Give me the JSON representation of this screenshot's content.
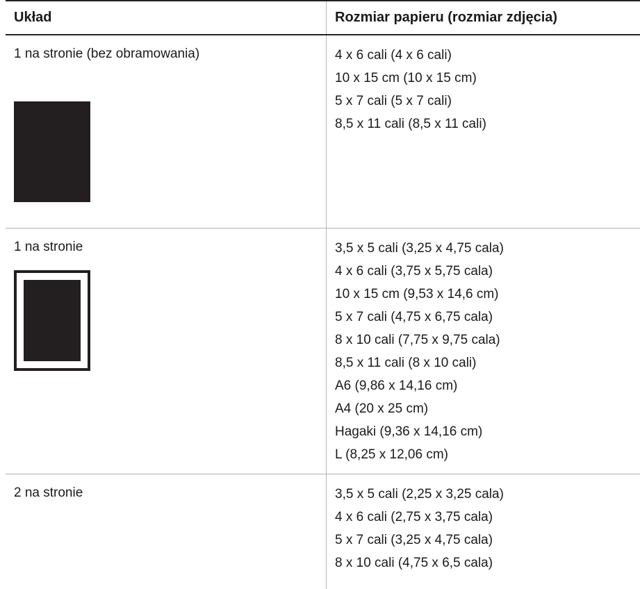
{
  "table": {
    "headers": {
      "layout": "Układ",
      "paper_size": "Rozmiar papieru (rozmiar zdjęcia)"
    },
    "rows": [
      {
        "layout": "1 na stronie (bez obramowania)",
        "thumbnail": "borderless-photo-icon",
        "sizes": [
          "4 x 6 cali (4 x 6 cali)",
          "10 x 15 cm (10 x 15 cm)",
          "5 x 7 cali (5 x 7 cali)",
          "8,5 x 11 cali (8,5 x 11 cali)"
        ]
      },
      {
        "layout": "1 na stronie",
        "thumbnail": "bordered-photo-icon",
        "sizes": [
          "3,5 x 5 cali (3,25 x 4,75 cala)",
          "4 x 6 cali (3,75 x 5,75 cala)",
          "10 x 15 cm (9,53 x 14,6 cm)",
          "5 x 7 cali (4,75 x 6,75 cala)",
          "8 x 10 cali (7,75 x 9,75 cala)",
          "8,5 x 11 cali (8 x 10 cali)",
          "A6 (9,86 x 14,16 cm)",
          "A4 (20 x 25 cm)",
          "Hagaki (9,36 x 14,16 cm)",
          "L (8,25 x 12,06 cm)"
        ]
      },
      {
        "layout": "2 na stronie",
        "sizes": [
          "3,5 x 5 cali (2,25 x 3,25 cala)",
          "4 x 6 cali (2,75 x 3,75 cala)",
          "5 x 7 cali (3,25 x 4,75 cala)",
          "8 x 10 cali (4,75 x 6,5 cala)"
        ]
      }
    ]
  },
  "colors": {
    "rule": "#222222",
    "divider": "#b8b8b8",
    "photo_fill": "#231f20"
  }
}
